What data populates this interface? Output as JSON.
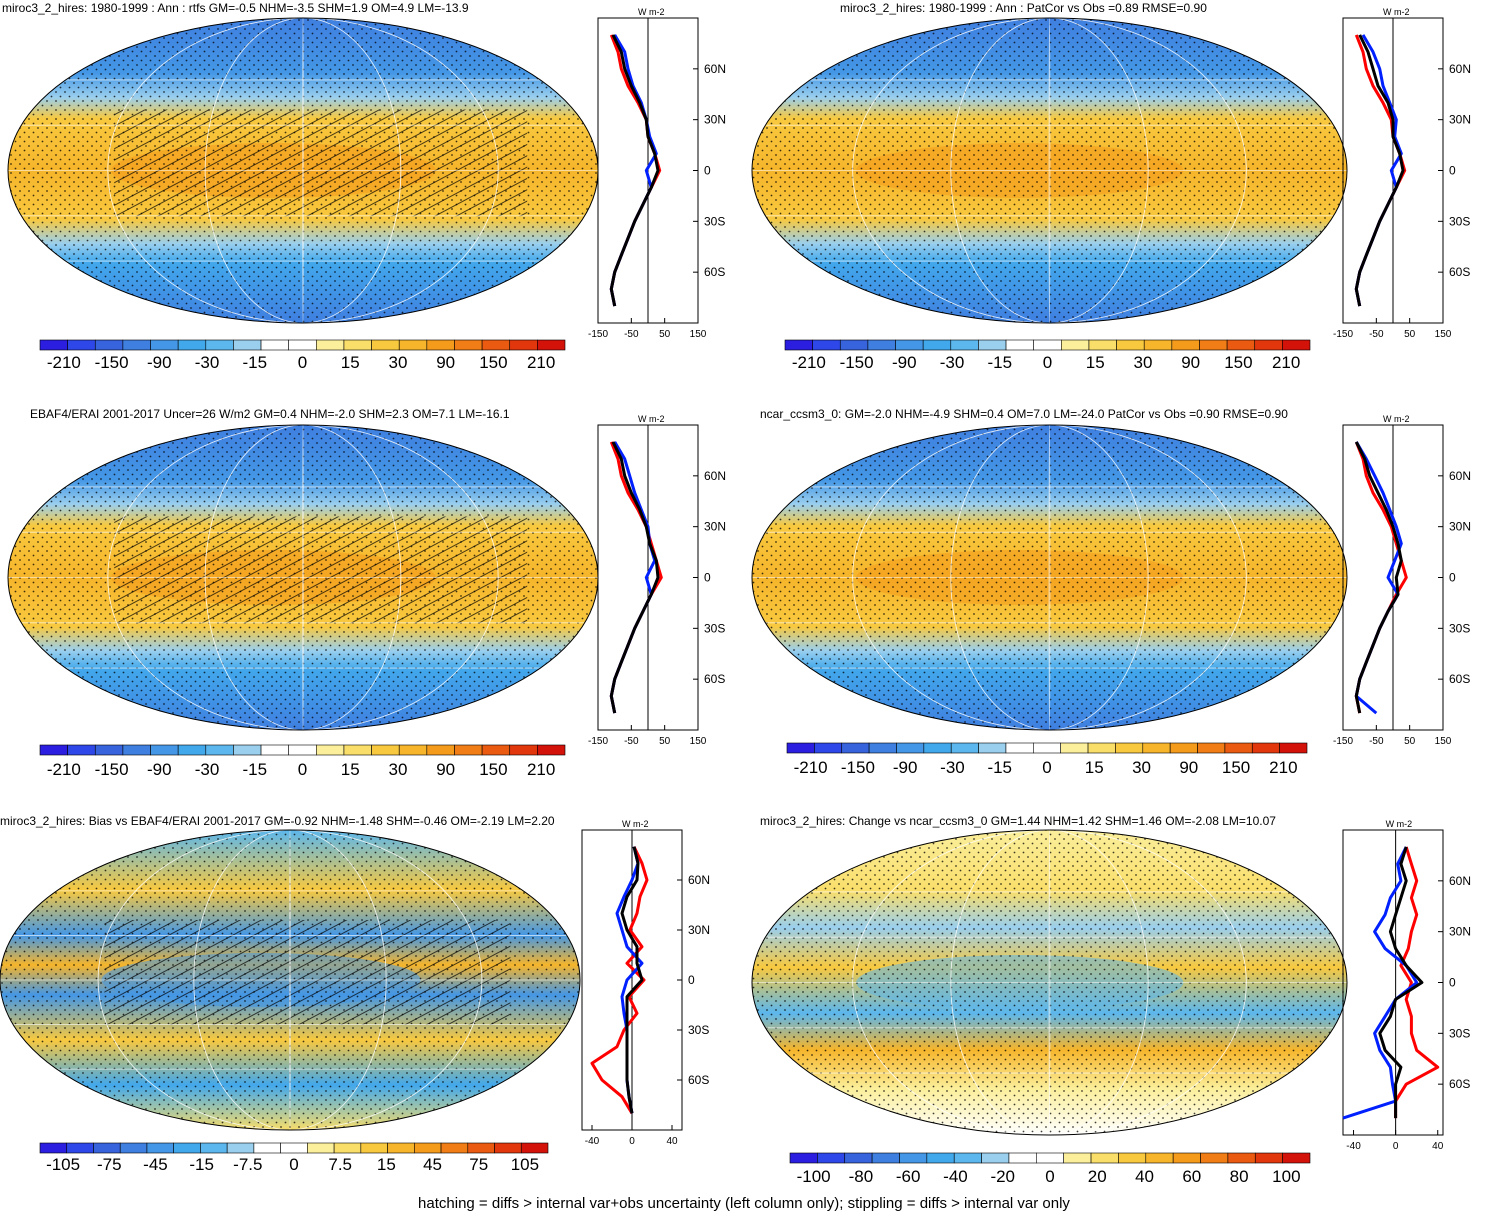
{
  "footer": "hatching = diffs > internal var+obs uncertainty (left column only); stippling = diffs > internal var only",
  "colors": {
    "scale_abs": [
      "#2b1ee0",
      "#2d47e8",
      "#3763dc",
      "#3f7fe0",
      "#4497e6",
      "#42a8ec",
      "#5bb7ee",
      "#9acfee",
      "#ffffff",
      "#ffffff",
      "#fbef9c",
      "#f9de6a",
      "#f8c93f",
      "#f6b52b",
      "#f49b1c",
      "#f07d16",
      "#ea5a10",
      "#e2370c",
      "#d3120a"
    ],
    "scale_change": [
      "#2b1ee0",
      "#2d47e8",
      "#3763dc",
      "#3f7fe0",
      "#4497e6",
      "#42a8ec",
      "#5bb7ee",
      "#9acfee",
      "#ffffff",
      "#ffffff",
      "#fbef9c",
      "#f9de6a",
      "#f8c93f",
      "#f6b52b",
      "#f49b1c",
      "#f07d16",
      "#ea5a10",
      "#e2370c",
      "#d3120a"
    ],
    "profile_red": "#ff0000",
    "profile_blue": "#0020ff",
    "profile_black": "#000000"
  },
  "chart_data": [
    {
      "id": "p1",
      "type": "map-with-zonal-profile",
      "title": "miroc3_2_hires: 1980-1999 : Ann : rtfs GM=-0.5 NHM=-3.5 SHM=1.9 OM=4.9 LM=-13.9",
      "colorbar_labels": [
        "-210",
        "-150",
        "-90",
        "-30",
        "-15",
        "0",
        "15",
        "30",
        "90",
        "150",
        "210"
      ],
      "profile": {
        "unit": "W m-2",
        "xlim": [
          -150,
          150
        ],
        "xticks": [
          "-150",
          "-50",
          "50",
          "150"
        ],
        "lat_ticks": [
          "60N",
          "30N",
          "0",
          "30S",
          "60S"
        ],
        "lat": [
          80,
          70,
          60,
          50,
          40,
          30,
          20,
          10,
          0,
          -10,
          -20,
          -30,
          -40,
          -50,
          -60,
          -70,
          -80
        ],
        "red": [
          -110,
          -90,
          -80,
          -60,
          -30,
          -5,
          0,
          20,
          35,
          10,
          -15,
          -40,
          -60,
          -80,
          -100,
          -110,
          -100
        ],
        "blue": [
          -100,
          -70,
          -60,
          -45,
          -20,
          -5,
          5,
          25,
          -5,
          10,
          -15,
          -40,
          -60,
          -80,
          -100,
          -110,
          -100
        ],
        "black": [
          -105,
          -80,
          -70,
          -50,
          -25,
          -5,
          0,
          20,
          30,
          10,
          -15,
          -40,
          -60,
          -80,
          -100,
          -110,
          -100
        ]
      }
    },
    {
      "id": "p2",
      "type": "map-with-zonal-profile",
      "title": "miroc3_2_hires: 1980-1999 : Ann : PatCor vs Obs =0.89 RMSE=0.90",
      "colorbar_labels": [
        "-210",
        "-150",
        "-90",
        "-30",
        "-15",
        "0",
        "15",
        "30",
        "90",
        "150",
        "210"
      ],
      "profile": {
        "unit": "W m-2",
        "xlim": [
          -150,
          150
        ],
        "xticks": [
          "-150",
          "-50",
          "50",
          "150"
        ],
        "lat_ticks": [
          "60N",
          "30N",
          "0",
          "30S",
          "60S"
        ],
        "lat": [
          80,
          70,
          60,
          50,
          40,
          30,
          20,
          10,
          0,
          -10,
          -20,
          -30,
          -40,
          -50,
          -60,
          -70,
          -80
        ],
        "red": [
          -110,
          -90,
          -80,
          -60,
          -30,
          -5,
          0,
          20,
          35,
          10,
          -15,
          -40,
          -60,
          -80,
          -100,
          -110,
          -100
        ],
        "blue": [
          -90,
          -60,
          -40,
          -30,
          -10,
          10,
          5,
          25,
          -5,
          10,
          -15,
          -40,
          -60,
          -80,
          -100,
          -110,
          -100
        ],
        "black": [
          -100,
          -75,
          -60,
          -45,
          -15,
          0,
          0,
          20,
          30,
          10,
          -15,
          -40,
          -60,
          -80,
          -100,
          -110,
          -100
        ]
      }
    },
    {
      "id": "p3",
      "type": "map-with-zonal-profile",
      "title": "EBAF4/ERAI 2001-2017 Uncer=26 W/m2 GM=0.4 NHM=-2.0 SHM=2.3 OM=7.1 LM=-16.1",
      "colorbar_labels": [
        "-210",
        "-150",
        "-90",
        "-30",
        "-15",
        "0",
        "15",
        "30",
        "90",
        "150",
        "210"
      ],
      "profile": {
        "unit": "W m-2",
        "xlim": [
          -150,
          150
        ],
        "xticks": [
          "-150",
          "-50",
          "50",
          "150"
        ],
        "lat_ticks": [
          "60N",
          "30N",
          "0",
          "30S",
          "60S"
        ],
        "lat": [
          80,
          70,
          60,
          50,
          40,
          30,
          20,
          10,
          0,
          -10,
          -20,
          -30,
          -40,
          -50,
          -60,
          -70,
          -80
        ],
        "red": [
          -110,
          -90,
          -80,
          -60,
          -30,
          -5,
          10,
          25,
          40,
          10,
          -15,
          -40,
          -60,
          -80,
          -100,
          -110,
          -100
        ],
        "blue": [
          -100,
          -70,
          -55,
          -40,
          -20,
          0,
          5,
          20,
          -5,
          10,
          -15,
          -40,
          -60,
          -80,
          -100,
          -110,
          -100
        ],
        "black": [
          -105,
          -80,
          -70,
          -50,
          -25,
          -5,
          5,
          25,
          30,
          10,
          -15,
          -40,
          -60,
          -80,
          -100,
          -110,
          -100
        ]
      }
    },
    {
      "id": "p4",
      "type": "map-with-zonal-profile",
      "title": "ncar_ccsm3_0: GM=-2.0 NHM=-4.9 SHM=0.4 OM=7.0 LM=-24.0 PatCor vs Obs =0.90 RMSE=0.90",
      "colorbar_labels": [
        "-210",
        "-150",
        "-90",
        "-30",
        "-15",
        "0",
        "15",
        "30",
        "90",
        "150",
        "210"
      ],
      "profile": {
        "unit": "W m-2",
        "xlim": [
          -150,
          150
        ],
        "xticks": [
          "-150",
          "-50",
          "50",
          "150"
        ],
        "lat_ticks": [
          "60N",
          "30N",
          "0",
          "30S",
          "60S"
        ],
        "lat": [
          80,
          70,
          60,
          50,
          40,
          30,
          20,
          10,
          0,
          -10,
          -20,
          -30,
          -40,
          -50,
          -60,
          -70,
          -80
        ],
        "red": [
          -110,
          -90,
          -80,
          -60,
          -30,
          -5,
          10,
          25,
          40,
          10,
          -15,
          -40,
          -60,
          -80,
          -100,
          -110,
          -100
        ],
        "blue": [
          -110,
          -80,
          -55,
          -30,
          -10,
          10,
          25,
          5,
          -15,
          15,
          -15,
          -40,
          -60,
          -80,
          -100,
          -110,
          -50
        ],
        "black": [
          -110,
          -85,
          -70,
          -45,
          -20,
          0,
          15,
          25,
          10,
          15,
          -15,
          -40,
          -60,
          -80,
          -100,
          -110,
          -100
        ]
      }
    },
    {
      "id": "p5",
      "type": "map-with-zonal-profile",
      "title": "miroc3_2_hires: Bias vs EBAF4/ERAI 2001-2017 GM=-0.92 NHM=-1.48 SHM=-0.46 OM=-2.19 LM=2.20",
      "colorbar_labels": [
        "-105",
        "-75",
        "-45",
        "-15",
        "-7.5",
        "0",
        "7.5",
        "15",
        "45",
        "75",
        "105"
      ],
      "profile": {
        "unit": "W m-2",
        "xlim": [
          -50,
          50
        ],
        "xticks": [
          "-40",
          "0",
          "40"
        ],
        "lat_ticks": [
          "60N",
          "30N",
          "0",
          "30S",
          "60S"
        ],
        "lat": [
          80,
          70,
          60,
          50,
          40,
          30,
          20,
          10,
          0,
          -10,
          -20,
          -30,
          -40,
          -50,
          -60,
          -70,
          -80
        ],
        "red": [
          2,
          10,
          15,
          8,
          5,
          -2,
          10,
          -5,
          12,
          -3,
          5,
          -8,
          -15,
          -40,
          -30,
          -10,
          0
        ],
        "blue": [
          2,
          6,
          0,
          -8,
          -15,
          -10,
          -5,
          10,
          -5,
          -10,
          -8,
          -5,
          -5,
          -5,
          -5,
          -3,
          0
        ],
        "black": [
          2,
          6,
          5,
          -5,
          -10,
          -5,
          5,
          5,
          10,
          -5,
          -5,
          -5,
          -5,
          -5,
          -5,
          -3,
          0
        ]
      }
    },
    {
      "id": "p6",
      "type": "map-with-zonal-profile",
      "title": "miroc3_2_hires: Change vs ncar_ccsm3_0 GM=1.44 NHM=1.42 SHM=1.46 OM=-2.08 LM=10.07",
      "colorbar_labels": [
        "-100",
        "-80",
        "-60",
        "-40",
        "-20",
        "0",
        "20",
        "40",
        "60",
        "80",
        "100"
      ],
      "profile": {
        "unit": "W m-2",
        "xlim": [
          -50,
          45
        ],
        "xticks": [
          "-40",
          "0",
          "40"
        ],
        "lat_ticks": [
          "60N",
          "30N",
          "0",
          "30S",
          "60S"
        ],
        "lat": [
          80,
          70,
          60,
          50,
          40,
          30,
          20,
          10,
          0,
          -10,
          -20,
          -30,
          -40,
          -50,
          -60,
          -70,
          -80
        ],
        "red": [
          10,
          15,
          20,
          15,
          20,
          15,
          12,
          5,
          15,
          10,
          15,
          15,
          20,
          40,
          10,
          0,
          0
        ],
        "blue": [
          10,
          2,
          5,
          -5,
          -10,
          -20,
          -10,
          10,
          20,
          0,
          -10,
          -20,
          -15,
          -5,
          -3,
          0,
          -50
        ],
        "black": [
          10,
          5,
          10,
          5,
          0,
          -5,
          0,
          10,
          25,
          0,
          -5,
          -15,
          -10,
          5,
          0,
          0,
          0
        ]
      }
    }
  ]
}
